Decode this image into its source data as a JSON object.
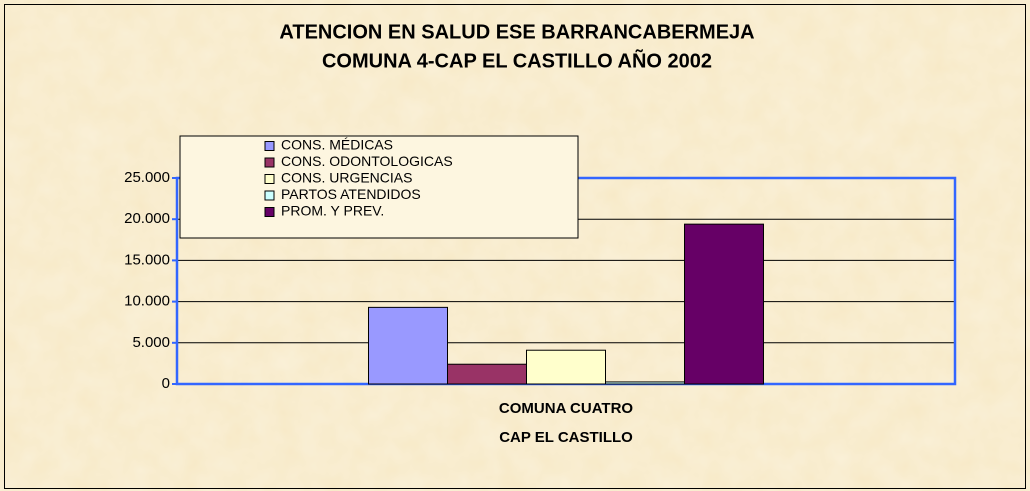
{
  "chart_data": {
    "type": "bar",
    "title": "ATENCION EN SALUD ESE BARRANCABERMEJA",
    "subtitle": "COMUNA 4-CAP EL CASTILLO AÑO 2002",
    "categories": [
      [
        "COMUNA CUATRO",
        "CAP EL CASTILLO"
      ]
    ],
    "series": [
      {
        "name": "CONS. MÉDICAS",
        "color": "#9999ff",
        "values": [
          9300
        ]
      },
      {
        "name": "CONS. ODONTOLOGICAS",
        "color": "#993366",
        "values": [
          2400
        ]
      },
      {
        "name": "CONS. URGENCIAS",
        "color": "#ffffcc",
        "values": [
          4100
        ]
      },
      {
        "name": "PARTOS ATENDIDOS",
        "color": "#ccffff",
        "values": [
          250
        ]
      },
      {
        "name": "PROM. Y PREV.",
        "color": "#660066",
        "values": [
          19400
        ]
      }
    ],
    "ylim": [
      0,
      25000
    ],
    "yticks": [
      0,
      {
        "value": 5000,
        "label": "5.000"
      },
      {
        "value": 10000,
        "label": "10.000"
      },
      {
        "value": 15000,
        "label": "15.000"
      },
      {
        "value": 20000,
        "label": "20.000"
      },
      {
        "value": 25000,
        "label": "25.000"
      }
    ],
    "grid": true,
    "legend": "top-left"
  }
}
